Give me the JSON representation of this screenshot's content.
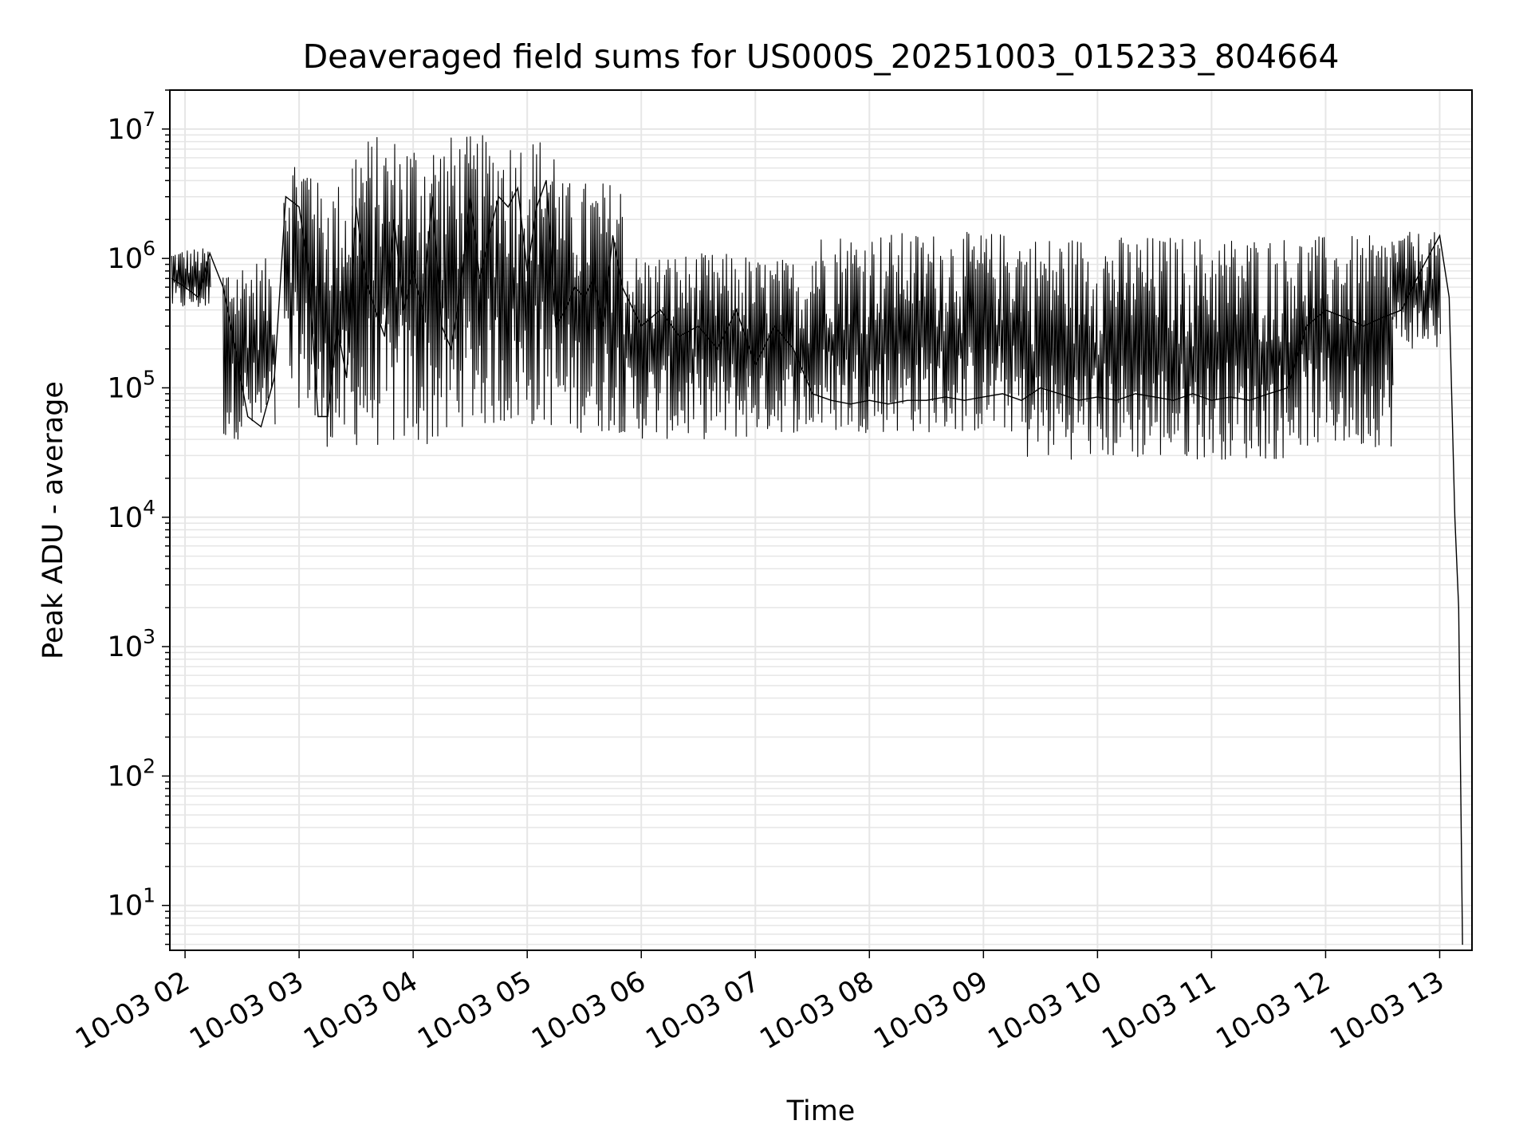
{
  "chart_data": {
    "type": "line",
    "title": "Deaveraged field sums for US000S_20251003_015233_804664",
    "xlabel": "Time",
    "ylabel": "Peak ADU - average",
    "yscale": "log",
    "grid": true,
    "xlim": [
      "10-03 01:52",
      "10-03 13:17"
    ],
    "ylim": [
      4.5,
      20000000
    ],
    "x_tick_labels": [
      "10-03 02",
      "10-03 03",
      "10-03 04",
      "10-03 05",
      "10-03 06",
      "10-03 07",
      "10-03 08",
      "10-03 09",
      "10-03 10",
      "10-03 11",
      "10-03 12",
      "10-03 13"
    ],
    "y_tick_labels": [
      {
        "base": "10",
        "exp": "1"
      },
      {
        "base": "10",
        "exp": "2"
      },
      {
        "base": "10",
        "exp": "3"
      },
      {
        "base": "10",
        "exp": "4"
      },
      {
        "base": "10",
        "exp": "5"
      },
      {
        "base": "10",
        "exp": "6"
      },
      {
        "base": "10",
        "exp": "7"
      }
    ],
    "series": [
      {
        "color": "#000000",
        "points": [
          [
            "10-03 01:53",
            700000
          ],
          [
            "10-03 02:00",
            600000
          ],
          [
            "10-03 02:07",
            500000
          ],
          [
            "10-03 02:13",
            1100000
          ],
          [
            "10-03 02:20",
            600000
          ],
          [
            "10-03 02:27",
            180000
          ],
          [
            "10-03 02:33",
            60000
          ],
          [
            "10-03 02:40",
            50000
          ],
          [
            "10-03 02:47",
            120000
          ],
          [
            "10-03 02:53",
            3000000
          ],
          [
            "10-03 03:00",
            2500000
          ],
          [
            "10-03 03:05",
            800000
          ],
          [
            "10-03 03:10",
            60000
          ],
          [
            "10-03 03:15",
            60000
          ],
          [
            "10-03 03:20",
            300000
          ],
          [
            "10-03 03:25",
            120000
          ],
          [
            "10-03 03:30",
            2500000
          ],
          [
            "10-03 03:35",
            700000
          ],
          [
            "10-03 03:40",
            400000
          ],
          [
            "10-03 03:45",
            250000
          ],
          [
            "10-03 03:50",
            2000000
          ],
          [
            "10-03 03:55",
            400000
          ],
          [
            "10-03 04:00",
            800000
          ],
          [
            "10-03 04:05",
            400000
          ],
          [
            "10-03 04:10",
            3000000
          ],
          [
            "10-03 04:15",
            300000
          ],
          [
            "10-03 04:20",
            200000
          ],
          [
            "10-03 04:25",
            600000
          ],
          [
            "10-03 04:30",
            3000000
          ],
          [
            "10-03 04:35",
            700000
          ],
          [
            "10-03 04:40",
            1500000
          ],
          [
            "10-03 04:45",
            3000000
          ],
          [
            "10-03 04:50",
            2500000
          ],
          [
            "10-03 04:55",
            3500000
          ],
          [
            "10-03 05:00",
            800000
          ],
          [
            "10-03 05:05",
            2500000
          ],
          [
            "10-03 05:10",
            4000000
          ],
          [
            "10-03 05:15",
            300000
          ],
          [
            "10-03 05:20",
            400000
          ],
          [
            "10-03 05:25",
            600000
          ],
          [
            "10-03 05:30",
            500000
          ],
          [
            "10-03 05:35",
            700000
          ],
          [
            "10-03 05:40",
            300000
          ],
          [
            "10-03 05:45",
            1500000
          ],
          [
            "10-03 05:50",
            600000
          ],
          [
            "10-03 06:00",
            300000
          ],
          [
            "10-03 06:10",
            400000
          ],
          [
            "10-03 06:20",
            250000
          ],
          [
            "10-03 06:30",
            300000
          ],
          [
            "10-03 06:40",
            200000
          ],
          [
            "10-03 06:50",
            400000
          ],
          [
            "10-03 07:00",
            150000
          ],
          [
            "10-03 07:10",
            300000
          ],
          [
            "10-03 07:20",
            200000
          ],
          [
            "10-03 07:30",
            90000
          ],
          [
            "10-03 07:40",
            80000
          ],
          [
            "10-03 07:50",
            75000
          ],
          [
            "10-03 08:00",
            80000
          ],
          [
            "10-03 08:10",
            75000
          ],
          [
            "10-03 08:20",
            80000
          ],
          [
            "10-03 08:30",
            80000
          ],
          [
            "10-03 08:40",
            85000
          ],
          [
            "10-03 08:50",
            80000
          ],
          [
            "10-03 09:00",
            85000
          ],
          [
            "10-03 09:10",
            90000
          ],
          [
            "10-03 09:20",
            80000
          ],
          [
            "10-03 09:30",
            100000
          ],
          [
            "10-03 09:40",
            90000
          ],
          [
            "10-03 09:50",
            80000
          ],
          [
            "10-03 10:00",
            85000
          ],
          [
            "10-03 10:10",
            80000
          ],
          [
            "10-03 10:20",
            90000
          ],
          [
            "10-03 10:30",
            85000
          ],
          [
            "10-03 10:40",
            80000
          ],
          [
            "10-03 10:50",
            90000
          ],
          [
            "10-03 11:00",
            80000
          ],
          [
            "10-03 11:10",
            85000
          ],
          [
            "10-03 11:20",
            80000
          ],
          [
            "10-03 11:30",
            90000
          ],
          [
            "10-03 11:40",
            100000
          ],
          [
            "10-03 11:50",
            300000
          ],
          [
            "10-03 12:00",
            400000
          ],
          [
            "10-03 12:10",
            350000
          ],
          [
            "10-03 12:20",
            300000
          ],
          [
            "10-03 12:30",
            350000
          ],
          [
            "10-03 12:40",
            400000
          ],
          [
            "10-03 12:50",
            800000
          ],
          [
            "10-03 13:00",
            1500000
          ],
          [
            "10-03 13:05",
            500000
          ],
          [
            "10-03 13:08",
            10000
          ],
          [
            "10-03 13:10",
            2000
          ],
          [
            "10-03 13:12",
            5
          ]
        ],
        "envelope": [
          {
            "from": "10-03 01:53",
            "to": "10-03 02:13",
            "low": 400000,
            "high": 1200000
          },
          {
            "from": "10-03 02:20",
            "to": "10-03 02:47",
            "low": 40000,
            "high": 1000000
          },
          {
            "from": "10-03 02:52",
            "to": "10-03 03:08",
            "low": 70000,
            "high": 7000000
          },
          {
            "from": "10-03 03:08",
            "to": "10-03 03:28",
            "low": 35000,
            "high": 4000000
          },
          {
            "from": "10-03 03:28",
            "to": "10-03 04:20",
            "low": 35000,
            "high": 9000000
          },
          {
            "from": "10-03 04:20",
            "to": "10-03 05:15",
            "low": 50000,
            "high": 9000000
          },
          {
            "from": "10-03 05:15",
            "to": "10-03 05:50",
            "low": 45000,
            "high": 4000000
          },
          {
            "from": "10-03 05:50",
            "to": "10-03 06:55",
            "low": 40000,
            "high": 1100000
          },
          {
            "from": "10-03 06:55",
            "to": "10-03 07:30",
            "low": 45000,
            "high": 1000000
          },
          {
            "from": "10-03 07:30",
            "to": "10-03 09:20",
            "low": 45000,
            "high": 1600000
          },
          {
            "from": "10-03 09:20",
            "to": "10-03 11:40",
            "low": 28000,
            "high": 1500000
          },
          {
            "from": "10-03 11:40",
            "to": "10-03 12:35",
            "low": 35000,
            "high": 1500000
          },
          {
            "from": "10-03 12:35",
            "to": "10-03 13:00",
            "low": 200000,
            "high": 1600000
          }
        ]
      }
    ]
  }
}
